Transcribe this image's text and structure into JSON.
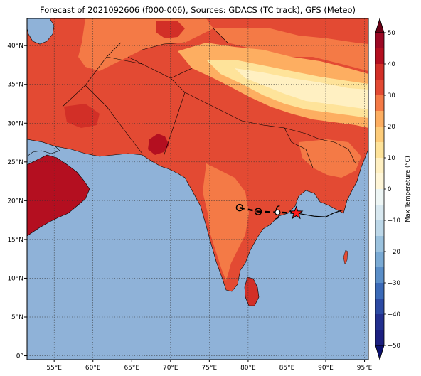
{
  "title": "Forecast of 2021092606 (f000-006), Sources: GDACS (TC track), GFS (Meteo)",
  "map": {
    "lon_range": [
      51.5,
      95.5
    ],
    "lat_range": [
      -0.5,
      43.5
    ],
    "lon_ticks": [
      "55°E",
      "60°E",
      "65°E",
      "70°E",
      "75°E",
      "80°E",
      "85°E",
      "90°E",
      "95°E"
    ],
    "lon_tick_values": [
      55,
      60,
      65,
      70,
      75,
      80,
      85,
      90,
      95
    ],
    "lat_ticks": [
      "0°",
      "5°N",
      "10°N",
      "15°N",
      "20°N",
      "25°N",
      "30°N",
      "35°N",
      "40°N"
    ],
    "lat_tick_values": [
      0,
      5,
      10,
      15,
      20,
      25,
      30,
      35,
      40
    ],
    "gridlines": true,
    "ocean_color": "#8fb2d8",
    "land_base_color": "#e34a33"
  },
  "colorbar": {
    "label": "Max Temperature (°C)",
    "ticks": [
      "50",
      "40",
      "30",
      "20",
      "10",
      "0",
      "−10",
      "−20",
      "−30",
      "−40",
      "−50"
    ],
    "tick_values": [
      50,
      40,
      30,
      20,
      10,
      0,
      -10,
      -20,
      -30,
      -40,
      -50
    ],
    "range": [
      -50,
      50
    ],
    "step": 5,
    "colors": {
      "-50": "#1c1f80",
      "-45": "#23308f",
      "-40": "#2c4aa3",
      "-35": "#3b6ab8",
      "-30": "#5a8ec8",
      "-25": "#7aaad4",
      "-20": "#9bc2de",
      "-15": "#bcd7e8",
      "-10": "#d8e8f0",
      "-5": "#eef6f5",
      "0": "#fff6d8",
      "5": "#fff0c2",
      "10": "#fee39a",
      "15": "#fdcc7a",
      "20": "#fdae61",
      "25": "#f47a46",
      "30": "#e34a33",
      "35": "#d22f27",
      "40": "#b40f20",
      "45": "#9c0824"
    },
    "extend_low_color": "#0d1170",
    "extend_high_color": "#6a0015"
  },
  "track": {
    "points": [
      {
        "lon": 78.9,
        "lat": 19.1,
        "marker": "open-circle"
      },
      {
        "lon": 81.3,
        "lat": 18.6,
        "marker": "open-circle"
      },
      {
        "lon": 83.8,
        "lat": 18.5,
        "marker": "cyclone-symbol"
      },
      {
        "lon": 86.2,
        "lat": 18.4,
        "marker": "red-star"
      }
    ],
    "forecast_line": [
      [
        86.2,
        18.4
      ],
      [
        88.5,
        18.0
      ],
      [
        90.0,
        17.9
      ],
      [
        91.0,
        18.4
      ],
      [
        92.2,
        18.8
      ]
    ]
  }
}
